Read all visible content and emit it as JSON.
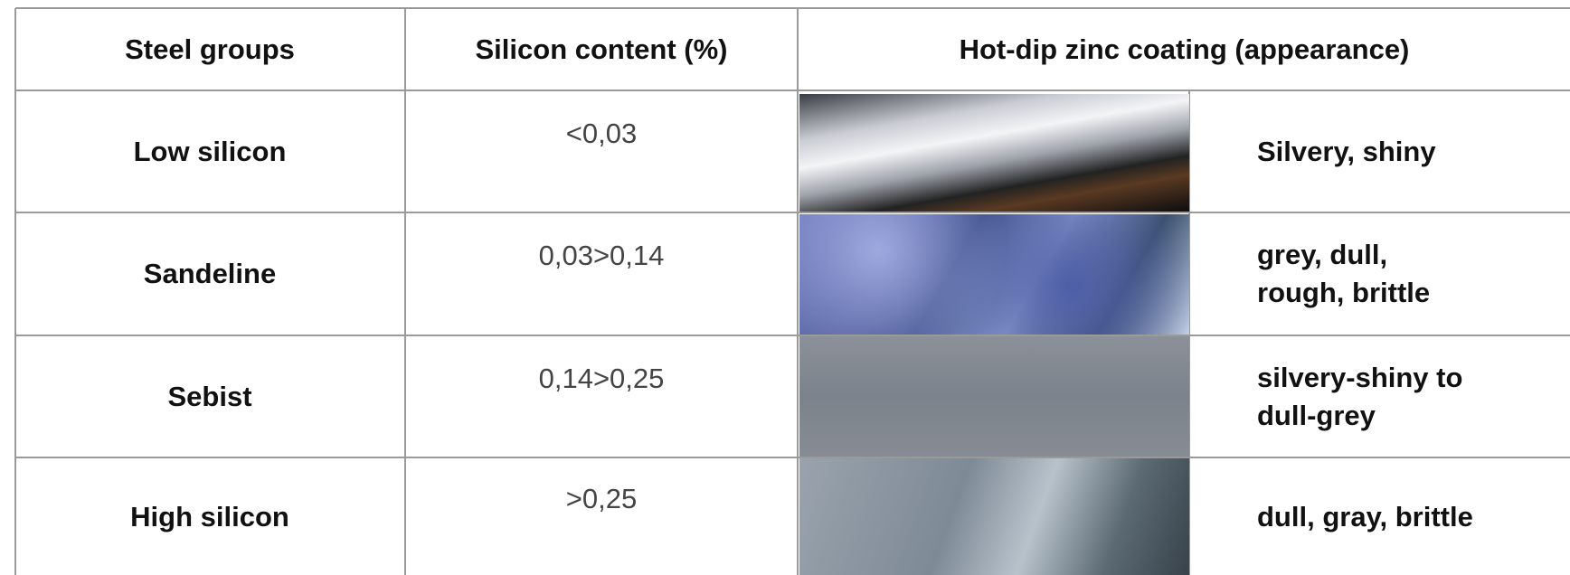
{
  "table": {
    "header": [
      "Steel groups",
      "Silicon content (%)",
      "Hot-dip zinc coating (appearance)"
    ],
    "rows": [
      {
        "group": "Low silicon",
        "silicon": "<0,03",
        "appearance": [
          "Silvery, shiny"
        ]
      },
      {
        "group": "Sandeline",
        "silicon": "0,03>0,14",
        "appearance": [
          "grey, dull,",
          "rough, brittle"
        ]
      },
      {
        "group": "Sebist",
        "silicon": "0,14>0,25",
        "appearance": [
          "silvery-shiny to",
          "dull-grey"
        ]
      },
      {
        "group": "High silicon",
        "silicon": ">0,25",
        "appearance": [
          "dull, gray, brittle"
        ]
      }
    ]
  }
}
